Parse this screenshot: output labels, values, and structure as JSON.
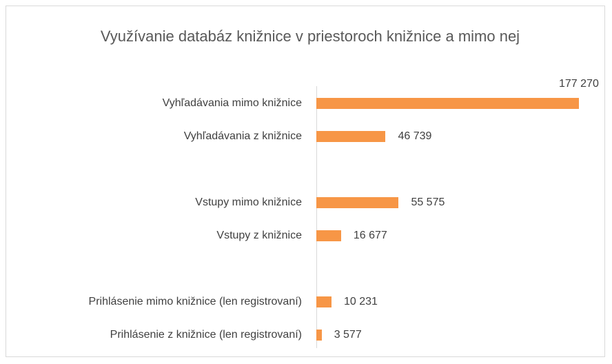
{
  "chart_data": {
    "type": "hbar",
    "title": "Využívanie databáz knižnice v priestoroch knižnice  a mimo nej",
    "categories": [
      "Vyhľadávania mimo knižnice",
      "Vyhľadávania z knižnice",
      null,
      "Vstupy  mimo knižnice",
      "Vstupy  z knižnice",
      null,
      "Prihlásenie mimo knižnice (len registrovaní)",
      "Prihlásenie z knižnice (len registrovaní)"
    ],
    "values": [
      177270,
      46739,
      null,
      55575,
      16677,
      null,
      10231,
      3577
    ],
    "value_labels": [
      "177 270",
      "46 739",
      null,
      "55 575",
      "16 677",
      null,
      "10 231",
      "3 577"
    ],
    "color": "#f79646"
  }
}
